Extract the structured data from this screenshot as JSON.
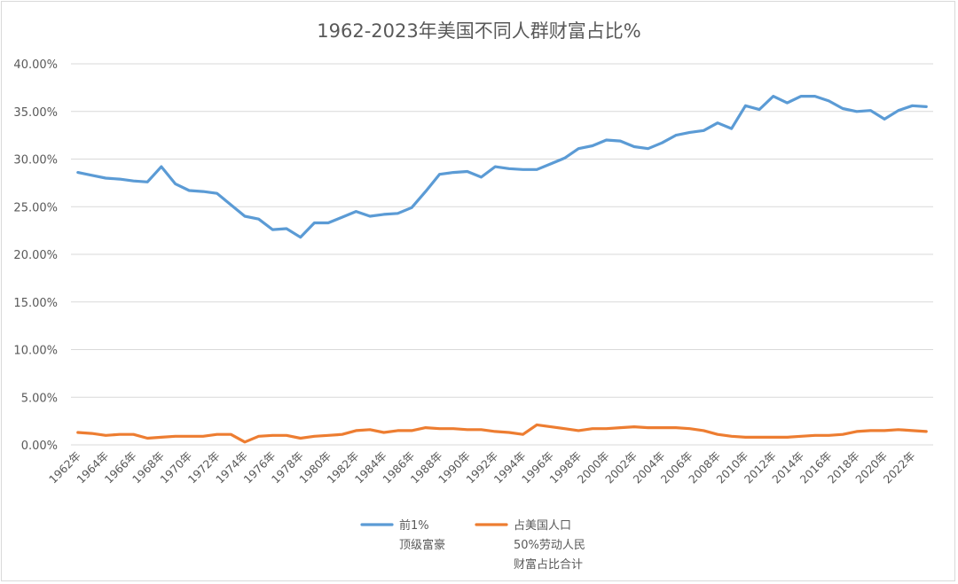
{
  "chart_data": {
    "type": "line",
    "title": "1962-2023年美国不同人群财富占比%",
    "xlabel": "",
    "ylabel": "",
    "ylim": [
      0,
      0.4
    ],
    "ytick_labels": [
      "0.00%",
      "5.00%",
      "10.00%",
      "15.00%",
      "20.00%",
      "25.00%",
      "30.00%",
      "35.00%",
      "40.00%"
    ],
    "x": [
      "1962年",
      "1963年",
      "1964年",
      "1965年",
      "1966年",
      "1967年",
      "1968年",
      "1969年",
      "1970年",
      "1971年",
      "1972年",
      "1973年",
      "1974年",
      "1975年",
      "1976年",
      "1977年",
      "1978年",
      "1979年",
      "1980年",
      "1981年",
      "1982年",
      "1983年",
      "1984年",
      "1985年",
      "1986年",
      "1987年",
      "1988年",
      "1989年",
      "1990年",
      "1991年",
      "1992年",
      "1993年",
      "1994年",
      "1995年",
      "1996年",
      "1997年",
      "1998年",
      "1999年",
      "2000年",
      "2001年",
      "2002年",
      "2003年",
      "2004年",
      "2005年",
      "2006年",
      "2007年",
      "2008年",
      "2009年",
      "2010年",
      "2011年",
      "2012年",
      "2013年",
      "2014年",
      "2015年",
      "2016年",
      "2017年",
      "2018年",
      "2019年",
      "2020年",
      "2021年",
      "2022年",
      "2023年"
    ],
    "xtick_labels": [
      "1962年",
      "1964年",
      "1966年",
      "1968年",
      "1970年",
      "1972年",
      "1974年",
      "1976年",
      "1978年",
      "1980年",
      "1982年",
      "1984年",
      "1986年",
      "1988年",
      "1990年",
      "1992年",
      "1994年",
      "1996年",
      "1998年",
      "2000年",
      "2002年",
      "2004年",
      "2006年",
      "2008年",
      "2010年",
      "2012年",
      "2014年",
      "2016年",
      "2018年",
      "2020年",
      "2022年"
    ],
    "grid": true,
    "legend_position": "bottom",
    "series": [
      {
        "name": "前1%顶级富豪",
        "legend_lines": [
          "前1%",
          "顶级富豪"
        ],
        "color": "#5b9bd5",
        "values": [
          0.286,
          0.283,
          0.28,
          0.279,
          0.277,
          0.276,
          0.292,
          0.274,
          0.267,
          0.266,
          0.264,
          0.252,
          0.24,
          0.237,
          0.226,
          0.227,
          0.218,
          0.233,
          0.233,
          0.239,
          0.245,
          0.24,
          0.242,
          0.243,
          0.249,
          0.266,
          0.284,
          0.286,
          0.287,
          0.281,
          0.292,
          0.29,
          0.289,
          0.289,
          0.295,
          0.301,
          0.311,
          0.314,
          0.32,
          0.319,
          0.313,
          0.311,
          0.317,
          0.325,
          0.328,
          0.33,
          0.338,
          0.332,
          0.356,
          0.352,
          0.366,
          0.359,
          0.366,
          0.366,
          0.361,
          0.353,
          0.35,
          0.351,
          0.342,
          0.351,
          0.356,
          0.355
        ]
      },
      {
        "name": "占美国人口50%劳动人民财富占比合计",
        "legend_lines": [
          "占美国人口",
          "50%劳动人民",
          "财富占比合计"
        ],
        "color": "#ed7d31",
        "values": [
          0.013,
          0.012,
          0.01,
          0.011,
          0.011,
          0.007,
          0.008,
          0.009,
          0.009,
          0.009,
          0.011,
          0.011,
          0.003,
          0.009,
          0.01,
          0.01,
          0.007,
          0.009,
          0.01,
          0.011,
          0.015,
          0.016,
          0.013,
          0.015,
          0.015,
          0.018,
          0.017,
          0.017,
          0.016,
          0.016,
          0.014,
          0.013,
          0.011,
          0.021,
          0.019,
          0.017,
          0.015,
          0.017,
          0.017,
          0.018,
          0.019,
          0.018,
          0.018,
          0.018,
          0.017,
          0.015,
          0.011,
          0.009,
          0.008,
          0.008,
          0.008,
          0.008,
          0.009,
          0.01,
          0.01,
          0.011,
          0.014,
          0.015,
          0.015,
          0.016,
          0.015,
          0.014
        ]
      }
    ]
  }
}
